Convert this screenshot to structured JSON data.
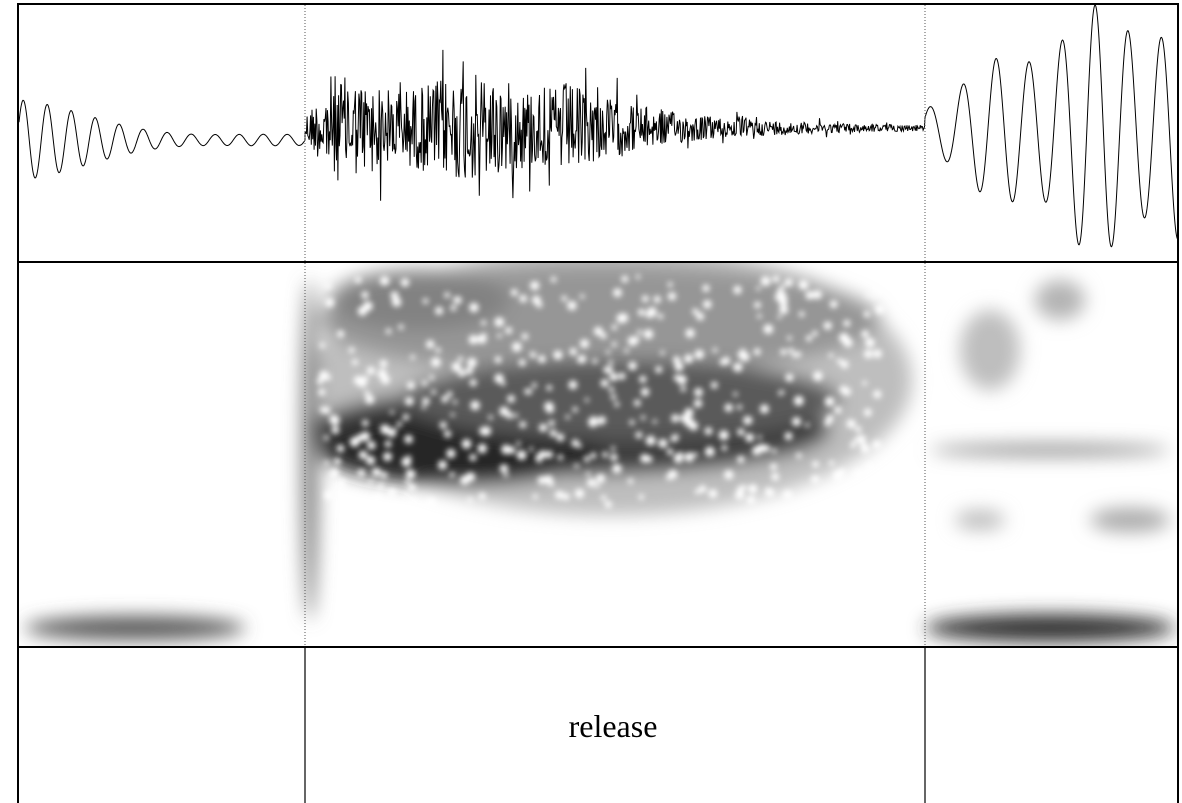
{
  "textgrid": {
    "label": "release"
  }
}
